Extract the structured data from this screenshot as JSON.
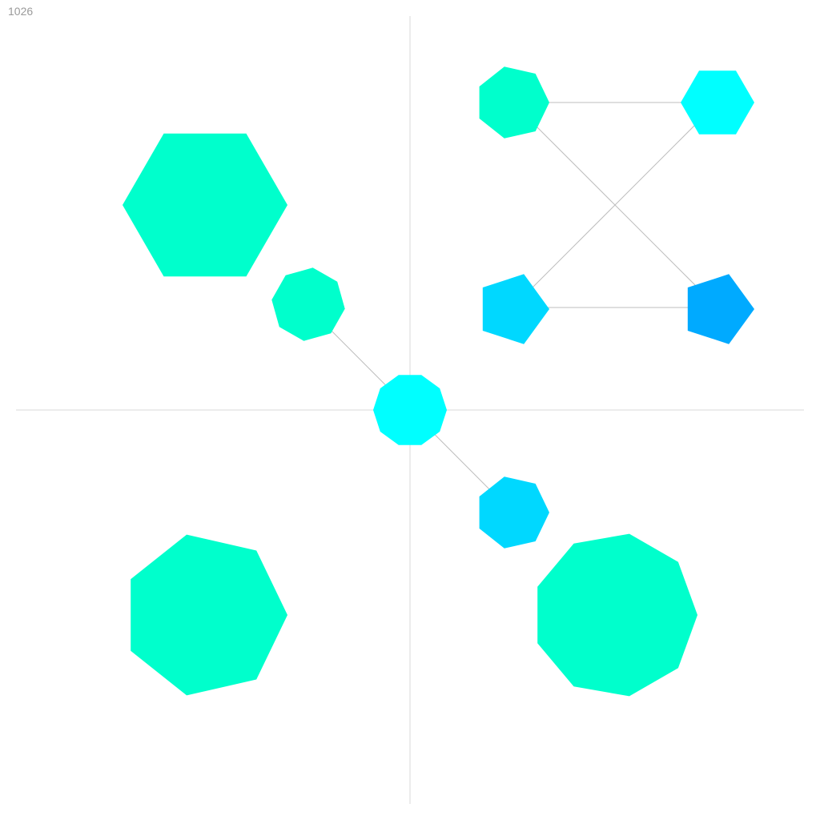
{
  "frame": {
    "label": "1026"
  },
  "colors": {
    "axis": "#e6e6e6",
    "connector": "#bdbdbd",
    "mint": "#00ffcc",
    "cyan": "#00ffff",
    "sky": "#00d8ff",
    "azure": "#00aaff",
    "background": "#ffffff"
  },
  "shapes": [
    {
      "name": "hexagon-top-left-large",
      "sides": 6,
      "color_key": "mint"
    },
    {
      "name": "octagon-diagonal-upper",
      "sides": 8,
      "color_key": "mint"
    },
    {
      "name": "decagon-center",
      "sides": 10,
      "color_key": "cyan"
    },
    {
      "name": "heptagon-diagonal-lower",
      "sides": 7,
      "color_key": "sky"
    },
    {
      "name": "heptagon-quad-top-left",
      "sides": 7,
      "color_key": "mint"
    },
    {
      "name": "hexagon-quad-top-right",
      "sides": 6,
      "color_key": "cyan"
    },
    {
      "name": "pentagon-quad-bottom-left",
      "sides": 5,
      "color_key": "sky"
    },
    {
      "name": "pentagon-quad-bottom-right",
      "sides": 5,
      "color_key": "azure"
    },
    {
      "name": "heptagon-bottom-left-large",
      "sides": 7,
      "color_key": "mint"
    },
    {
      "name": "nonagon-bottom-right-large",
      "sides": 9,
      "color_key": "mint"
    }
  ]
}
